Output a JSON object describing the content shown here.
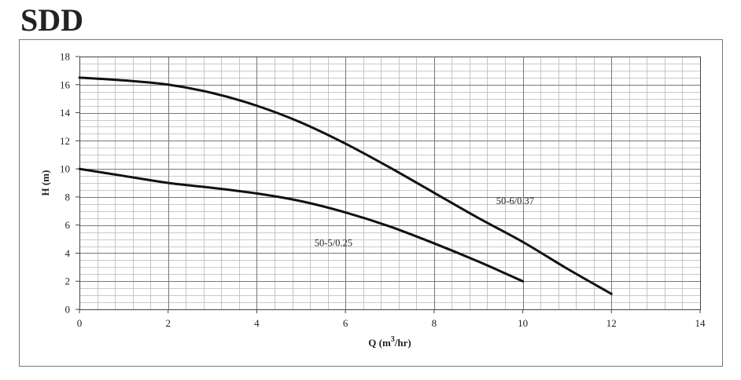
{
  "title": "SDD",
  "chart_data": {
    "type": "line",
    "xlabel": "Q (m3/hr)",
    "xlabel_parts": {
      "pre": "Q (m",
      "sup": "3",
      "post": "/hr)"
    },
    "ylabel": "H (m)",
    "xlim": [
      0,
      14
    ],
    "ylim": [
      0,
      18
    ],
    "xticks": [
      0,
      2,
      4,
      6,
      8,
      10,
      12,
      14
    ],
    "yticks": [
      0,
      2,
      4,
      6,
      8,
      10,
      12,
      14,
      16,
      18
    ],
    "grid": true,
    "series": [
      {
        "name": "50-6/0.37",
        "x": [
          0,
          1,
          2,
          3,
          4,
          5,
          6,
          7,
          8,
          9,
          10,
          11,
          12
        ],
        "y": [
          16.5,
          16.3,
          16.0,
          15.4,
          14.5,
          13.3,
          11.8,
          10.1,
          8.3,
          6.5,
          4.8,
          2.9,
          1.1
        ]
      },
      {
        "name": "50-5/0.25",
        "x": [
          0,
          1,
          2,
          3,
          4,
          5,
          6,
          7,
          8,
          9,
          10
        ],
        "y": [
          10.0,
          9.5,
          9.0,
          8.65,
          8.25,
          7.7,
          6.9,
          5.9,
          4.7,
          3.4,
          2.0
        ]
      }
    ],
    "annotations": [
      {
        "text": "50-6/0.37",
        "x": 9.4,
        "y": 7.5
      },
      {
        "text": "50-5/0.25",
        "x": 5.3,
        "y": 4.5
      }
    ]
  }
}
